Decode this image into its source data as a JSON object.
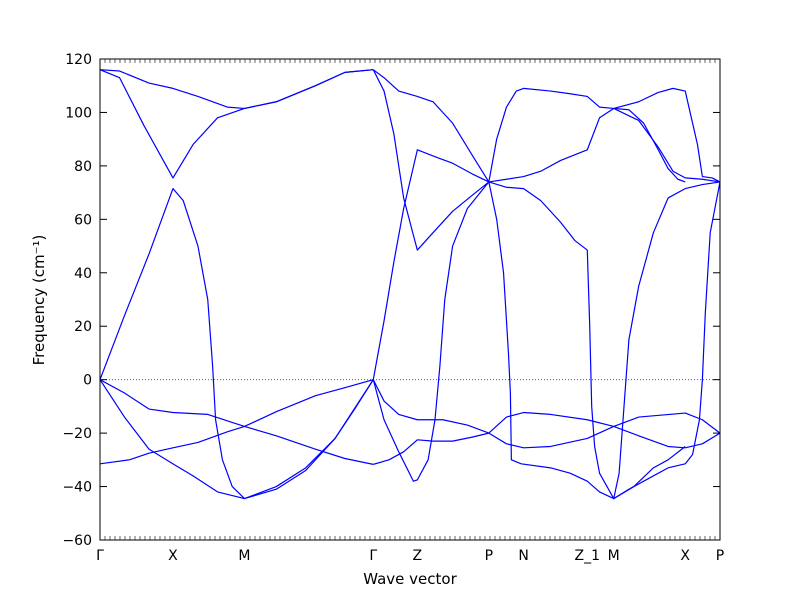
{
  "chart_data": {
    "type": "line",
    "title": "",
    "xlabel": "Wave vector",
    "ylabel": "Frequency (cm⁻¹)",
    "ylim": [
      -60,
      120
    ],
    "yticks": [
      -60,
      -40,
      -20,
      0,
      20,
      40,
      60,
      80,
      100,
      120
    ],
    "grid": false,
    "line_color": "#0000ff",
    "zero_line_color": "#5555cc",
    "kpoints": [
      {
        "label": "Γ",
        "x": 0.0
      },
      {
        "label": "X",
        "x": 0.745
      },
      {
        "label": "M",
        "x": 1.475
      },
      {
        "label": "Γ",
        "x": 2.79
      },
      {
        "label": "Z",
        "x": 3.24
      },
      {
        "label": "P",
        "x": 3.97
      },
      {
        "label": "N",
        "x": 4.325
      },
      {
        "label": "Z_1",
        "x": 4.975
      },
      {
        "label": "M",
        "x": 5.245
      },
      {
        "label": "X",
        "x": 5.975
      },
      {
        "label": "P",
        "x": 6.33
      }
    ],
    "x_range": [
      0.0,
      6.33
    ],
    "series": [
      {
        "values": [
          [
            0,
            116
          ],
          [
            0.2,
            115.5
          ],
          [
            0.5,
            111
          ],
          [
            0.745,
            109
          ],
          [
            1.0,
            106
          ],
          [
            1.3,
            102
          ],
          [
            1.475,
            101.5
          ],
          [
            1.8,
            104
          ],
          [
            2.2,
            110
          ],
          [
            2.5,
            115
          ],
          [
            2.79,
            116
          ]
        ]
      },
      {
        "values": [
          [
            0,
            116
          ],
          [
            0.2,
            113
          ],
          [
            0.45,
            95
          ],
          [
            0.745,
            75.5
          ],
          [
            0.95,
            88
          ],
          [
            1.2,
            98
          ],
          [
            1.475,
            101.5
          ],
          [
            1.8,
            104
          ],
          [
            2.2,
            110
          ],
          [
            2.5,
            115
          ],
          [
            2.79,
            116
          ]
        ]
      },
      {
        "values": [
          [
            0,
            0
          ],
          [
            0.25,
            24
          ],
          [
            0.5,
            47
          ],
          [
            0.745,
            71.5
          ],
          [
            0.85,
            67
          ],
          [
            1.0,
            50
          ],
          [
            1.1,
            30
          ],
          [
            1.15,
            5
          ],
          [
            1.18,
            -15
          ],
          [
            1.25,
            -30
          ],
          [
            1.35,
            -40
          ],
          [
            1.475,
            -44.5
          ],
          [
            1.8,
            -41
          ],
          [
            2.1,
            -34
          ],
          [
            2.4,
            -22
          ],
          [
            2.6,
            -11
          ],
          [
            2.79,
            0
          ]
        ]
      },
      {
        "values": [
          [
            0,
            0
          ],
          [
            0.25,
            -5
          ],
          [
            0.5,
            -11
          ],
          [
            0.745,
            -12.3
          ],
          [
            1.1,
            -13
          ],
          [
            1.475,
            -17.5
          ],
          [
            1.8,
            -21
          ],
          [
            2.2,
            -26
          ],
          [
            2.5,
            -29.5
          ],
          [
            2.79,
            -31.7
          ]
        ]
      },
      {
        "values": [
          [
            0,
            0
          ],
          [
            0.25,
            -14
          ],
          [
            0.5,
            -26
          ],
          [
            0.745,
            -31.5
          ],
          [
            0.95,
            -36
          ],
          [
            1.2,
            -42
          ],
          [
            1.475,
            -44.5
          ],
          [
            1.8,
            -40
          ],
          [
            2.1,
            -33
          ],
          [
            2.4,
            -22
          ],
          [
            2.79,
            0
          ]
        ]
      },
      {
        "values": [
          [
            0,
            -31.5
          ],
          [
            0.3,
            -30
          ],
          [
            0.5,
            -27.5
          ],
          [
            0.745,
            -25.5
          ],
          [
            1.0,
            -23.5
          ],
          [
            1.3,
            -19.5
          ],
          [
            1.475,
            -17.5
          ],
          [
            1.8,
            -12
          ],
          [
            2.2,
            -6
          ],
          [
            2.5,
            -3
          ],
          [
            2.79,
            0
          ]
        ]
      },
      {
        "values": [
          [
            2.79,
            116
          ],
          [
            2.9,
            113
          ],
          [
            3.05,
            108
          ],
          [
            3.24,
            106
          ],
          [
            3.4,
            104
          ],
          [
            3.6,
            96
          ],
          [
            3.8,
            84
          ],
          [
            3.97,
            74
          ]
        ]
      },
      {
        "values": [
          [
            2.79,
            116
          ],
          [
            2.9,
            108
          ],
          [
            3.0,
            92
          ],
          [
            3.1,
            68
          ],
          [
            3.2,
            54
          ],
          [
            3.24,
            48.5
          ],
          [
            3.4,
            55
          ],
          [
            3.6,
            63
          ],
          [
            3.8,
            69
          ],
          [
            3.97,
            74
          ]
        ]
      },
      {
        "values": [
          [
            2.79,
            0
          ],
          [
            2.9,
            22
          ],
          [
            3.0,
            44
          ],
          [
            3.1,
            64
          ],
          [
            3.24,
            86
          ],
          [
            3.45,
            83
          ],
          [
            3.6,
            81
          ],
          [
            3.8,
            77
          ],
          [
            3.97,
            74
          ]
        ]
      },
      {
        "values": [
          [
            2.79,
            0
          ],
          [
            2.9,
            -8
          ],
          [
            3.05,
            -13
          ],
          [
            3.24,
            -15
          ],
          [
            3.5,
            -15
          ],
          [
            3.75,
            -17
          ],
          [
            3.97,
            -20
          ]
        ]
      },
      {
        "values": [
          [
            2.79,
            0
          ],
          [
            2.9,
            -15
          ],
          [
            3.05,
            -27
          ],
          [
            3.2,
            -38
          ],
          [
            3.24,
            -37.5
          ],
          [
            3.35,
            -30
          ],
          [
            3.42,
            -15
          ],
          [
            3.47,
            5
          ],
          [
            3.52,
            30
          ],
          [
            3.6,
            50
          ],
          [
            3.75,
            64
          ],
          [
            3.97,
            74
          ]
        ]
      },
      {
        "values": [
          [
            2.79,
            -31.7
          ],
          [
            2.95,
            -30
          ],
          [
            3.1,
            -27
          ],
          [
            3.24,
            -22.5
          ],
          [
            3.4,
            -23
          ],
          [
            3.6,
            -23
          ],
          [
            3.8,
            -21.5
          ],
          [
            3.97,
            -20
          ]
        ]
      },
      {
        "values": [
          [
            3.97,
            74
          ],
          [
            4.05,
            90
          ],
          [
            4.15,
            102
          ],
          [
            4.25,
            108
          ],
          [
            4.325,
            109
          ],
          [
            4.6,
            108
          ],
          [
            4.8,
            107
          ],
          [
            4.975,
            106
          ],
          [
            5.1,
            102
          ],
          [
            5.245,
            101.5
          ],
          [
            5.5,
            104
          ],
          [
            5.7,
            107.5
          ],
          [
            5.85,
            109
          ],
          [
            5.975,
            108
          ],
          [
            6.1,
            88
          ],
          [
            6.15,
            76
          ],
          [
            6.25,
            75.5
          ],
          [
            6.33,
            74
          ]
        ]
      },
      {
        "values": [
          [
            3.97,
            74
          ],
          [
            4.15,
            75
          ],
          [
            4.325,
            76
          ],
          [
            4.5,
            78
          ],
          [
            4.7,
            82
          ],
          [
            4.975,
            86
          ],
          [
            5.1,
            98
          ],
          [
            5.245,
            101.5
          ],
          [
            5.5,
            97
          ],
          [
            5.7,
            87
          ],
          [
            5.85,
            78
          ],
          [
            5.975,
            75.5
          ],
          [
            6.15,
            75
          ],
          [
            6.33,
            74
          ]
        ]
      },
      {
        "values": [
          [
            3.97,
            74
          ],
          [
            4.15,
            72
          ],
          [
            4.325,
            71.5
          ],
          [
            4.5,
            67
          ],
          [
            4.7,
            59
          ],
          [
            4.85,
            52
          ],
          [
            4.975,
            48.5
          ],
          [
            5.0,
            20
          ],
          [
            5.02,
            -10
          ],
          [
            5.05,
            -25
          ],
          [
            5.1,
            -35
          ],
          [
            5.245,
            -44.5
          ],
          [
            5.45,
            -40
          ],
          [
            5.65,
            -33
          ],
          [
            5.8,
            -30
          ],
          [
            5.975,
            -25
          ]
        ]
      },
      {
        "values": [
          [
            3.97,
            74
          ],
          [
            4.05,
            60
          ],
          [
            4.12,
            40
          ],
          [
            4.17,
            10
          ],
          [
            4.19,
            -5
          ],
          [
            4.2,
            -30
          ],
          [
            4.3,
            -31.5
          ],
          [
            4.6,
            -33
          ],
          [
            4.8,
            -35
          ],
          [
            4.975,
            -38
          ],
          [
            5.1,
            -42
          ],
          [
            5.245,
            -44.5
          ],
          [
            5.4,
            -41
          ],
          [
            5.6,
            -37
          ],
          [
            5.8,
            -33
          ],
          [
            5.975,
            -31.5
          ],
          [
            6.05,
            -28
          ],
          [
            6.12,
            -15
          ],
          [
            6.15,
            0
          ],
          [
            6.18,
            25
          ],
          [
            6.23,
            55
          ],
          [
            6.33,
            74
          ]
        ]
      },
      {
        "values": [
          [
            3.97,
            -20
          ],
          [
            4.15,
            -14
          ],
          [
            4.325,
            -12.3
          ],
          [
            4.6,
            -13
          ],
          [
            4.975,
            -15
          ],
          [
            5.245,
            -17.5
          ],
          [
            5.5,
            -14
          ],
          [
            5.975,
            -12.5
          ],
          [
            6.15,
            -15
          ],
          [
            6.33,
            -20
          ]
        ]
      },
      {
        "values": [
          [
            3.97,
            -20
          ],
          [
            4.15,
            -24
          ],
          [
            4.325,
            -25.5
          ],
          [
            4.6,
            -25
          ],
          [
            4.975,
            -22
          ],
          [
            5.245,
            -17.5
          ],
          [
            5.5,
            -21
          ],
          [
            5.8,
            -25
          ],
          [
            5.975,
            -25.5
          ],
          [
            6.15,
            -24
          ],
          [
            6.33,
            -20
          ]
        ]
      },
      {
        "values": [
          [
            5.245,
            101.5
          ],
          [
            5.4,
            101
          ],
          [
            5.55,
            96
          ],
          [
            5.7,
            86
          ],
          [
            5.8,
            79
          ],
          [
            5.9,
            75
          ],
          [
            5.975,
            74
          ]
        ]
      },
      {
        "values": [
          [
            5.245,
            -44.5
          ],
          [
            5.3,
            -35
          ],
          [
            5.36,
            -5
          ],
          [
            5.4,
            15
          ],
          [
            5.5,
            35
          ],
          [
            5.65,
            55
          ],
          [
            5.8,
            68
          ],
          [
            5.975,
            71.5
          ],
          [
            6.15,
            73
          ],
          [
            6.33,
            74
          ]
        ]
      }
    ]
  }
}
